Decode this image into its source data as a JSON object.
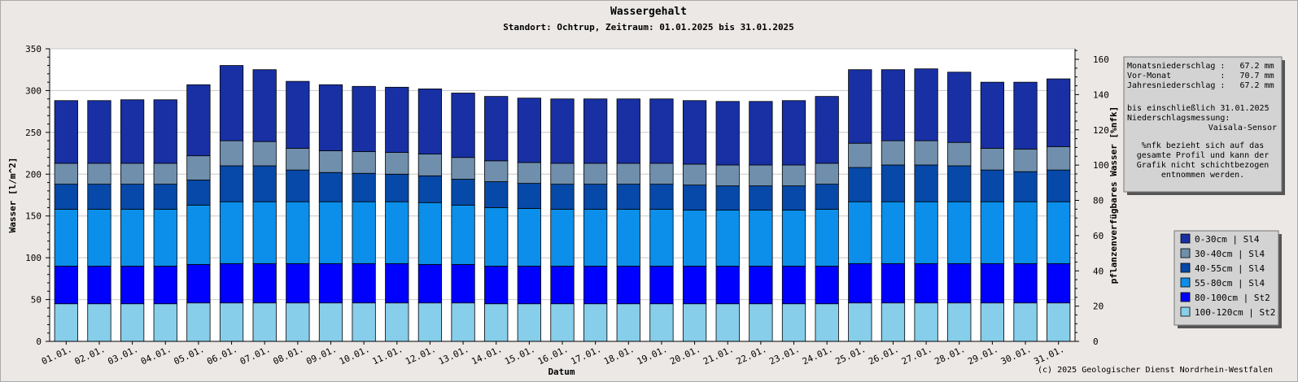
{
  "chart_data": {
    "type": "bar",
    "stacked": true,
    "title": "Wassergehalt",
    "subtitle": "Standort: Ochtrup, Zeitraum: 01.01.2025 bis 31.01.2025",
    "xlabel": "Datum",
    "ylabel": "Wasser [l/m^2]",
    "y2label": "pflanzenverfügbares Wasser [%nfk]",
    "ylim": [
      0,
      350
    ],
    "yticks": [
      0,
      50,
      100,
      150,
      200,
      250,
      300,
      350
    ],
    "y2lim": [
      0,
      166
    ],
    "y2ticks": [
      0,
      20,
      40,
      60,
      80,
      100,
      120,
      140,
      160
    ],
    "grid": true,
    "legend_position": "right",
    "categories": [
      "01.01.",
      "02.01.",
      "03.01.",
      "04.01.",
      "05.01.",
      "06.01.",
      "07.01.",
      "08.01.",
      "09.01.",
      "10.01.",
      "11.01.",
      "12.01.",
      "13.01.",
      "14.01.",
      "15.01.",
      "16.01.",
      "17.01.",
      "18.01.",
      "19.01.",
      "20.01.",
      "21.01.",
      "22.01.",
      "23.01.",
      "24.01.",
      "25.01.",
      "26.01.",
      "27.01.",
      "28.01.",
      "29.01.",
      "30.01.",
      "31.01."
    ],
    "series": [
      {
        "name": "100-120cm | St2",
        "color": "#87ceeb",
        "values": [
          45,
          45,
          45,
          45,
          46,
          46,
          46,
          46,
          46,
          46,
          46,
          46,
          46,
          45,
          45,
          45,
          45,
          45,
          45,
          45,
          45,
          45,
          45,
          45,
          46,
          46,
          46,
          46,
          46,
          46,
          46
        ]
      },
      {
        "name": "80-100cm | St2",
        "color": "#0000ff",
        "values": [
          45,
          45,
          45,
          45,
          46,
          47,
          47,
          47,
          47,
          47,
          47,
          46,
          46,
          45,
          45,
          45,
          45,
          45,
          45,
          45,
          45,
          45,
          45,
          45,
          47,
          47,
          47,
          47,
          47,
          47,
          47
        ]
      },
      {
        "name": "55-80cm | Sl4",
        "color": "#0b8fea",
        "values": [
          68,
          68,
          68,
          68,
          71,
          74,
          74,
          74,
          74,
          74,
          74,
          74,
          71,
          70,
          69,
          68,
          68,
          68,
          68,
          67,
          67,
          67,
          67,
          68,
          74,
          74,
          74,
          74,
          74,
          74,
          74
        ]
      },
      {
        "name": "40-55cm | Sl4",
        "color": "#0649a8",
        "values": [
          30,
          30,
          30,
          30,
          30,
          43,
          43,
          38,
          35,
          34,
          33,
          32,
          31,
          31,
          30,
          30,
          30,
          30,
          30,
          30,
          29,
          29,
          29,
          30,
          41,
          44,
          44,
          43,
          38,
          36,
          38
        ]
      },
      {
        "name": "30-40cm | Sl4",
        "color": "#6f8fad",
        "values": [
          25,
          25,
          25,
          25,
          29,
          30,
          29,
          26,
          26,
          26,
          26,
          26,
          26,
          25,
          25,
          25,
          25,
          25,
          25,
          25,
          25,
          25,
          25,
          25,
          29,
          29,
          29,
          28,
          26,
          27,
          28
        ]
      },
      {
        "name": "0-30cm | Sl4",
        "color": "#1830a4",
        "values": [
          75,
          75,
          76,
          76,
          85,
          90,
          86,
          80,
          79,
          78,
          78,
          78,
          77,
          77,
          77,
          77,
          77,
          77,
          77,
          76,
          76,
          76,
          77,
          80,
          88,
          85,
          86,
          84,
          79,
          80,
          81
        ]
      }
    ]
  },
  "info_box": {
    "lines": [
      "Monatsniederschlag :   67.2 mm",
      "Vor-Monat          :   70.7 mm",
      "Jahresniederschlag :   67.2 mm"
    ],
    "gap_lines": [
      "bis einschließlich 31.01.2025",
      "Niederschlagsmessung:"
    ],
    "sensor": "Vaisala-Sensor",
    "note_lines": [
      "%nfk bezieht sich auf das",
      "gesamte Profil und kann der",
      "Grafik nicht schichtbezogen",
      "entnommen werden."
    ]
  },
  "legend": [
    {
      "label": "0-30cm | Sl4",
      "color": "#1830a4"
    },
    {
      "label": "30-40cm | Sl4",
      "color": "#6f8fad"
    },
    {
      "label": "40-55cm | Sl4",
      "color": "#0649a8"
    },
    {
      "label": "55-80cm | Sl4",
      "color": "#0b8fea"
    },
    {
      "label": "80-100cm | St2",
      "color": "#0000ff"
    },
    {
      "label": "100-120cm | St2",
      "color": "#87ceeb"
    }
  ],
  "credit": "(c) 2025 Geologischer Dienst Nordrhein-Westfalen"
}
